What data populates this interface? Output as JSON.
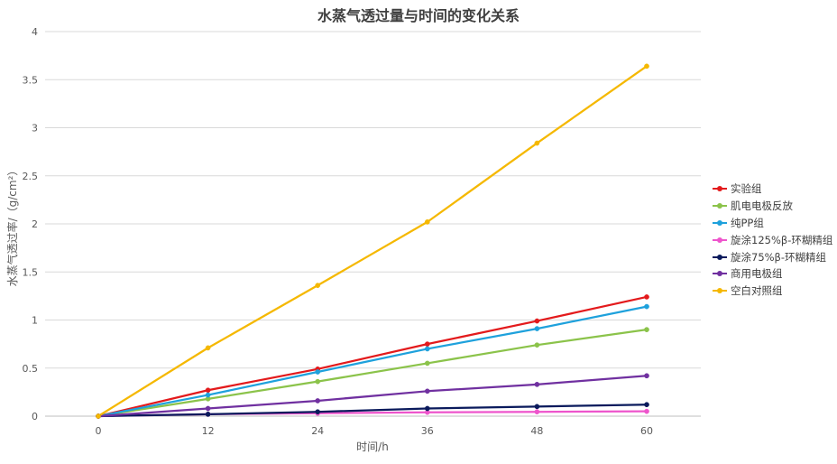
{
  "chart_data": {
    "type": "line",
    "title": "水蒸气透过量与时间的变化关系",
    "xlabel": "时间/h",
    "ylabel": "水蒸气透过率/（g/cm²）",
    "x": [
      0,
      12,
      24,
      36,
      48,
      60
    ],
    "x_tick_labels": [
      "0",
      "12",
      "24",
      "36",
      "48",
      "60"
    ],
    "ylim": [
      0,
      4
    ],
    "y_ticks": [
      "0",
      "0.5",
      "1",
      "1.5",
      "2",
      "2.5",
      "3",
      "3.5",
      "4"
    ],
    "grid": true,
    "legend_position": "right",
    "series": [
      {
        "name": "实验组",
        "color": "#e31a1c",
        "values": [
          0,
          0.27,
          0.49,
          0.75,
          0.99,
          1.24
        ]
      },
      {
        "name": "肌电电极反放",
        "color": "#8bc34a",
        "values": [
          0,
          0.18,
          0.36,
          0.55,
          0.74,
          0.9
        ]
      },
      {
        "name": "纯PP组",
        "color": "#1ea1dc",
        "values": [
          0,
          0.22,
          0.46,
          0.7,
          0.91,
          1.14
        ]
      },
      {
        "name": "旋涂125%β-环糊精组",
        "color": "#ee55cc",
        "values": [
          0,
          0.02,
          0.03,
          0.04,
          0.045,
          0.05
        ]
      },
      {
        "name": "旋涂75%β-环糊精组",
        "color": "#0a1a5c",
        "values": [
          0,
          0.02,
          0.045,
          0.08,
          0.1,
          0.12
        ]
      },
      {
        "name": "商用电极组",
        "color": "#7030a0",
        "values": [
          0,
          0.08,
          0.16,
          0.26,
          0.33,
          0.42
        ]
      },
      {
        "name": "空白对照组",
        "color": "#f5b800",
        "values": [
          0,
          0.71,
          1.36,
          2.02,
          2.84,
          3.64
        ]
      }
    ]
  }
}
